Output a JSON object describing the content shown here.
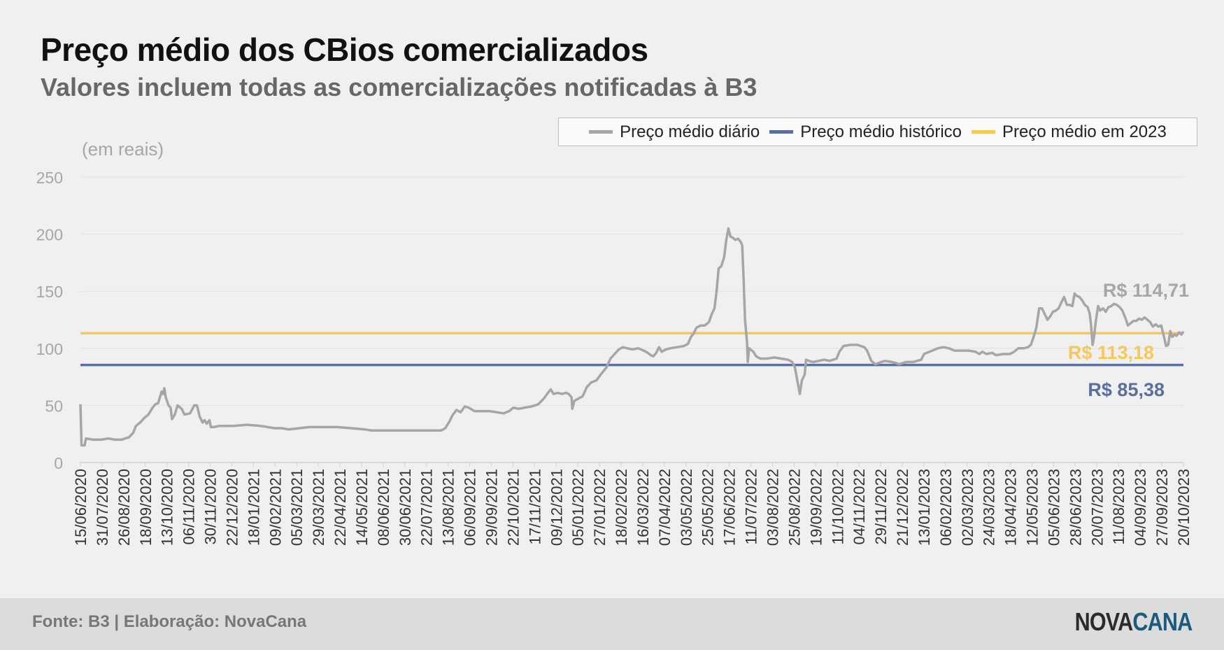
{
  "header": {
    "title": "Preço médio dos CBios comercializados",
    "subtitle": "Valores incluem todas as comercializações notificadas à B3"
  },
  "footer": {
    "source": "Fonte: B3 | Elaboração: NovaCana",
    "logo_part1": "NOVA",
    "logo_part2": "CANA"
  },
  "colors": {
    "daily": "#a6a6a6",
    "historical": "#5b6f9e",
    "year2023": "#f6c75a",
    "grid": "#e2e2e2",
    "axis_text": "#a6a6a6",
    "x_tick_text": "#333333"
  },
  "chart_data": {
    "type": "line",
    "title": "Preço médio dos CBios comercializados",
    "subtitle": "Valores incluem todas as comercializações notificadas à B3",
    "ylabel": "(em reais)",
    "ylim": [
      0,
      250
    ],
    "yticks": [
      0,
      50,
      100,
      150,
      200,
      250
    ],
    "grid": true,
    "legend_position": "top-right",
    "x_tick_labels": [
      "15/06/2020",
      "31/07/2020",
      "26/08/2020",
      "18/09/2020",
      "13/10/2020",
      "06/11/2020",
      "30/11/2020",
      "22/12/2020",
      "18/01/2021",
      "09/02/2021",
      "05/03/2021",
      "29/03/2021",
      "22/04/2021",
      "14/05/2021",
      "08/06/2021",
      "30/06/2021",
      "22/07/2021",
      "13/08/2021",
      "06/09/2021",
      "29/09/2021",
      "22/10/2021",
      "17/11/2021",
      "09/12/2021",
      "05/01/2022",
      "27/01/2022",
      "18/02/2022",
      "16/03/2022",
      "07/04/2022",
      "03/05/2022",
      "25/05/2022",
      "17/06/2022",
      "11/07/2022",
      "03/08/2022",
      "25/08/2022",
      "19/09/2022",
      "11/10/2022",
      "04/11/2022",
      "29/11/2022",
      "21/12/2022",
      "13/01/2023",
      "06/02/2023",
      "02/03/2023",
      "24/03/2023",
      "18/04/2023",
      "12/05/2023",
      "05/06/2023",
      "28/06/2023",
      "20/07/2023",
      "11/08/2023",
      "04/09/2023",
      "27/09/2023",
      "20/10/2023"
    ],
    "legend": [
      {
        "name": "Preço médio diário",
        "color": "#a6a6a6"
      },
      {
        "name": "Preço médio histórico",
        "color": "#5b6f9e"
      },
      {
        "name": "Preço médio em 2023",
        "color": "#f6c75a"
      }
    ],
    "series": [
      {
        "name": "Preço médio diário",
        "color": "#a6a6a6",
        "end_label": "R$ 114,71",
        "points": [
          [
            0,
            51
          ],
          [
            0.08,
            15
          ],
          [
            0.3,
            15
          ],
          [
            0.4,
            21
          ],
          [
            0.9,
            20
          ],
          [
            1.5,
            20
          ],
          [
            2,
            21
          ],
          [
            2.5,
            20
          ],
          [
            3.0,
            20
          ],
          [
            3.2,
            21
          ],
          [
            3.5,
            22
          ],
          [
            3.8,
            26
          ],
          [
            4.0,
            32
          ],
          [
            4.3,
            35
          ],
          [
            4.6,
            39
          ],
          [
            4.9,
            42
          ],
          [
            5.2,
            48
          ],
          [
            5.4,
            51
          ],
          [
            5.6,
            52
          ],
          [
            5.75,
            58
          ],
          [
            5.85,
            62
          ],
          [
            5.95,
            60
          ],
          [
            6.05,
            65
          ],
          [
            6.15,
            57
          ],
          [
            6.35,
            50
          ],
          [
            6.5,
            48
          ],
          [
            6.6,
            38
          ],
          [
            6.8,
            42
          ],
          [
            7.0,
            50
          ],
          [
            7.3,
            47
          ],
          [
            7.5,
            42
          ],
          [
            7.9,
            43
          ],
          [
            8.2,
            50
          ],
          [
            8.4,
            50
          ],
          [
            8.6,
            40
          ],
          [
            8.8,
            35
          ],
          [
            8.95,
            37
          ],
          [
            9.1,
            34
          ],
          [
            9.3,
            37
          ],
          [
            9.4,
            31
          ],
          [
            9.6,
            31
          ],
          [
            10.0,
            32
          ],
          [
            11.0,
            32
          ],
          [
            12.0,
            33
          ],
          [
            13.0,
            32
          ],
          [
            14.0,
            30
          ],
          [
            14.5,
            30
          ],
          [
            15.0,
            29
          ],
          [
            15.8,
            30
          ],
          [
            16.5,
            31
          ],
          [
            17.5,
            31
          ],
          [
            18.5,
            31
          ],
          [
            19.5,
            30
          ],
          [
            20.5,
            29
          ],
          [
            21.0,
            28
          ],
          [
            22.0,
            28
          ],
          [
            23.0,
            28
          ],
          [
            24.0,
            28
          ],
          [
            24.5,
            28
          ],
          [
            25.5,
            28
          ],
          [
            26.0,
            28
          ],
          [
            26.3,
            30
          ],
          [
            26.6,
            36
          ],
          [
            26.8,
            41
          ],
          [
            27.1,
            46
          ],
          [
            27.4,
            44
          ],
          [
            27.7,
            49
          ],
          [
            28.0,
            48
          ],
          [
            28.4,
            45
          ],
          [
            29.0,
            45
          ],
          [
            29.5,
            45
          ],
          [
            30.0,
            44
          ],
          [
            30.5,
            43
          ],
          [
            30.9,
            45
          ],
          [
            31.2,
            48
          ],
          [
            31.6,
            47
          ],
          [
            32.0,
            48
          ],
          [
            32.5,
            49
          ],
          [
            33.0,
            51
          ],
          [
            33.4,
            56
          ],
          [
            33.7,
            61
          ],
          [
            33.9,
            64
          ],
          [
            34.1,
            60
          ],
          [
            34.4,
            61
          ],
          [
            34.7,
            60
          ],
          [
            35.0,
            61
          ],
          [
            35.2,
            60
          ],
          [
            35.4,
            57
          ],
          [
            35.45,
            47
          ],
          [
            35.6,
            54
          ],
          [
            35.9,
            56
          ],
          [
            36.2,
            58
          ],
          [
            36.5,
            66
          ],
          [
            36.8,
            70
          ],
          [
            37.2,
            72
          ],
          [
            37.5,
            77
          ],
          [
            37.9,
            83
          ],
          [
            38.2,
            91
          ],
          [
            38.5,
            95
          ],
          [
            38.8,
            99
          ],
          [
            39.1,
            101
          ],
          [
            39.4,
            100
          ],
          [
            39.8,
            99
          ],
          [
            40.2,
            100
          ],
          [
            40.6,
            98
          ],
          [
            40.9,
            96
          ],
          [
            41.1,
            94
          ],
          [
            41.3,
            93
          ],
          [
            41.5,
            96
          ],
          [
            41.7,
            101
          ],
          [
            41.9,
            97
          ],
          [
            42.2,
            99
          ],
          [
            42.5,
            100
          ],
          [
            43.0,
            101
          ],
          [
            43.5,
            102
          ],
          [
            43.8,
            104
          ],
          [
            44.0,
            110
          ],
          [
            44.2,
            113
          ],
          [
            44.4,
            118
          ],
          [
            44.7,
            120
          ],
          [
            45.0,
            120
          ],
          [
            45.3,
            123
          ],
          [
            45.5,
            130
          ],
          [
            45.7,
            135
          ],
          [
            45.85,
            150
          ],
          [
            46.0,
            170
          ],
          [
            46.2,
            172
          ],
          [
            46.4,
            180
          ],
          [
            46.55,
            195
          ],
          [
            46.7,
            205
          ],
          [
            46.85,
            198
          ],
          [
            47.0,
            197
          ],
          [
            47.2,
            195
          ],
          [
            47.4,
            196
          ],
          [
            47.6,
            193
          ],
          [
            47.7,
            190
          ],
          [
            47.8,
            160
          ],
          [
            47.9,
            125
          ],
          [
            48.05,
            105
          ],
          [
            48.1,
            88
          ],
          [
            48.2,
            100
          ],
          [
            48.5,
            97
          ],
          [
            48.7,
            93
          ],
          [
            49.0,
            91
          ],
          [
            49.5,
            91
          ],
          [
            50.0,
            92
          ],
          [
            50.5,
            91
          ],
          [
            51.0,
            90
          ],
          [
            51.3,
            88
          ],
          [
            51.5,
            83
          ],
          [
            51.7,
            70
          ],
          [
            51.85,
            60
          ],
          [
            52.0,
            72
          ],
          [
            52.2,
            77
          ],
          [
            52.3,
            90
          ],
          [
            52.5,
            89
          ],
          [
            52.8,
            88
          ],
          [
            53.2,
            89
          ],
          [
            53.6,
            90
          ],
          [
            54.0,
            89
          ],
          [
            54.5,
            91
          ],
          [
            54.7,
            97
          ],
          [
            55.0,
            102
          ],
          [
            55.5,
            103
          ],
          [
            56.0,
            103
          ],
          [
            56.5,
            101
          ],
          [
            56.7,
            98
          ],
          [
            57.0,
            89
          ],
          [
            57.3,
            86
          ],
          [
            57.7,
            88
          ],
          [
            58.0,
            89
          ],
          [
            58.5,
            88
          ],
          [
            58.8,
            87
          ],
          [
            59.0,
            86
          ],
          [
            59.5,
            88
          ],
          [
            60.0,
            88
          ],
          [
            60.3,
            89
          ],
          [
            60.6,
            90
          ],
          [
            60.8,
            95
          ],
          [
            61.0,
            96
          ],
          [
            61.4,
            98
          ],
          [
            61.8,
            100
          ],
          [
            62.2,
            101
          ],
          [
            62.6,
            100
          ],
          [
            63.0,
            98
          ],
          [
            63.5,
            98
          ],
          [
            64.0,
            98
          ],
          [
            64.5,
            97
          ],
          [
            64.8,
            95
          ],
          [
            65.0,
            97
          ],
          [
            65.3,
            95
          ],
          [
            65.7,
            96
          ],
          [
            66.0,
            94
          ],
          [
            66.5,
            95
          ],
          [
            67.0,
            95
          ],
          [
            67.3,
            97
          ],
          [
            67.6,
            100
          ],
          [
            68.0,
            100
          ],
          [
            68.3,
            101
          ],
          [
            68.5,
            103
          ],
          [
            68.7,
            110
          ],
          [
            68.9,
            118
          ],
          [
            69.1,
            135
          ],
          [
            69.3,
            135
          ],
          [
            69.5,
            130
          ],
          [
            69.7,
            125
          ],
          [
            69.9,
            128
          ],
          [
            70.1,
            132
          ],
          [
            70.3,
            133
          ],
          [
            70.5,
            135
          ],
          [
            70.7,
            140
          ],
          [
            70.9,
            145
          ],
          [
            71.1,
            138
          ],
          [
            71.3,
            138
          ],
          [
            71.5,
            137
          ],
          [
            71.65,
            148
          ],
          [
            71.8,
            146
          ],
          [
            72.0,
            145
          ],
          [
            72.2,
            142
          ],
          [
            72.4,
            138
          ],
          [
            72.6,
            136
          ],
          [
            72.75,
            130
          ],
          [
            72.85,
            119
          ],
          [
            72.95,
            103
          ],
          [
            73.05,
            110
          ],
          [
            73.2,
            125
          ],
          [
            73.35,
            137
          ],
          [
            73.5,
            133
          ],
          [
            73.7,
            135
          ],
          [
            73.9,
            132
          ],
          [
            74.1,
            136
          ],
          [
            74.3,
            137
          ],
          [
            74.5,
            139
          ],
          [
            74.7,
            138
          ],
          [
            74.9,
            136
          ],
          [
            75.1,
            133
          ],
          [
            75.3,
            127
          ],
          [
            75.5,
            120
          ],
          [
            75.7,
            122
          ],
          [
            75.9,
            124
          ],
          [
            76.1,
            124
          ],
          [
            76.3,
            126
          ],
          [
            76.5,
            125
          ],
          [
            76.7,
            127
          ],
          [
            76.9,
            125
          ],
          [
            77.1,
            123
          ],
          [
            77.3,
            119
          ],
          [
            77.5,
            121
          ],
          [
            77.7,
            119
          ],
          [
            77.9,
            120
          ],
          [
            78.1,
            110
          ],
          [
            78.25,
            102
          ],
          [
            78.4,
            103
          ],
          [
            78.55,
            115
          ],
          [
            78.7,
            110
          ],
          [
            78.85,
            112
          ],
          [
            79.0,
            111
          ],
          [
            79.2,
            114
          ],
          [
            79.35,
            112
          ],
          [
            79.5,
            114.71
          ]
        ]
      },
      {
        "name": "Preço médio histórico",
        "color": "#5b6f9e",
        "value": 85.38,
        "label": "R$ 85,38"
      },
      {
        "name": "Preço médio em 2023",
        "color": "#f6c75a",
        "value": 113.18,
        "label": "R$ 113,18"
      }
    ]
  }
}
